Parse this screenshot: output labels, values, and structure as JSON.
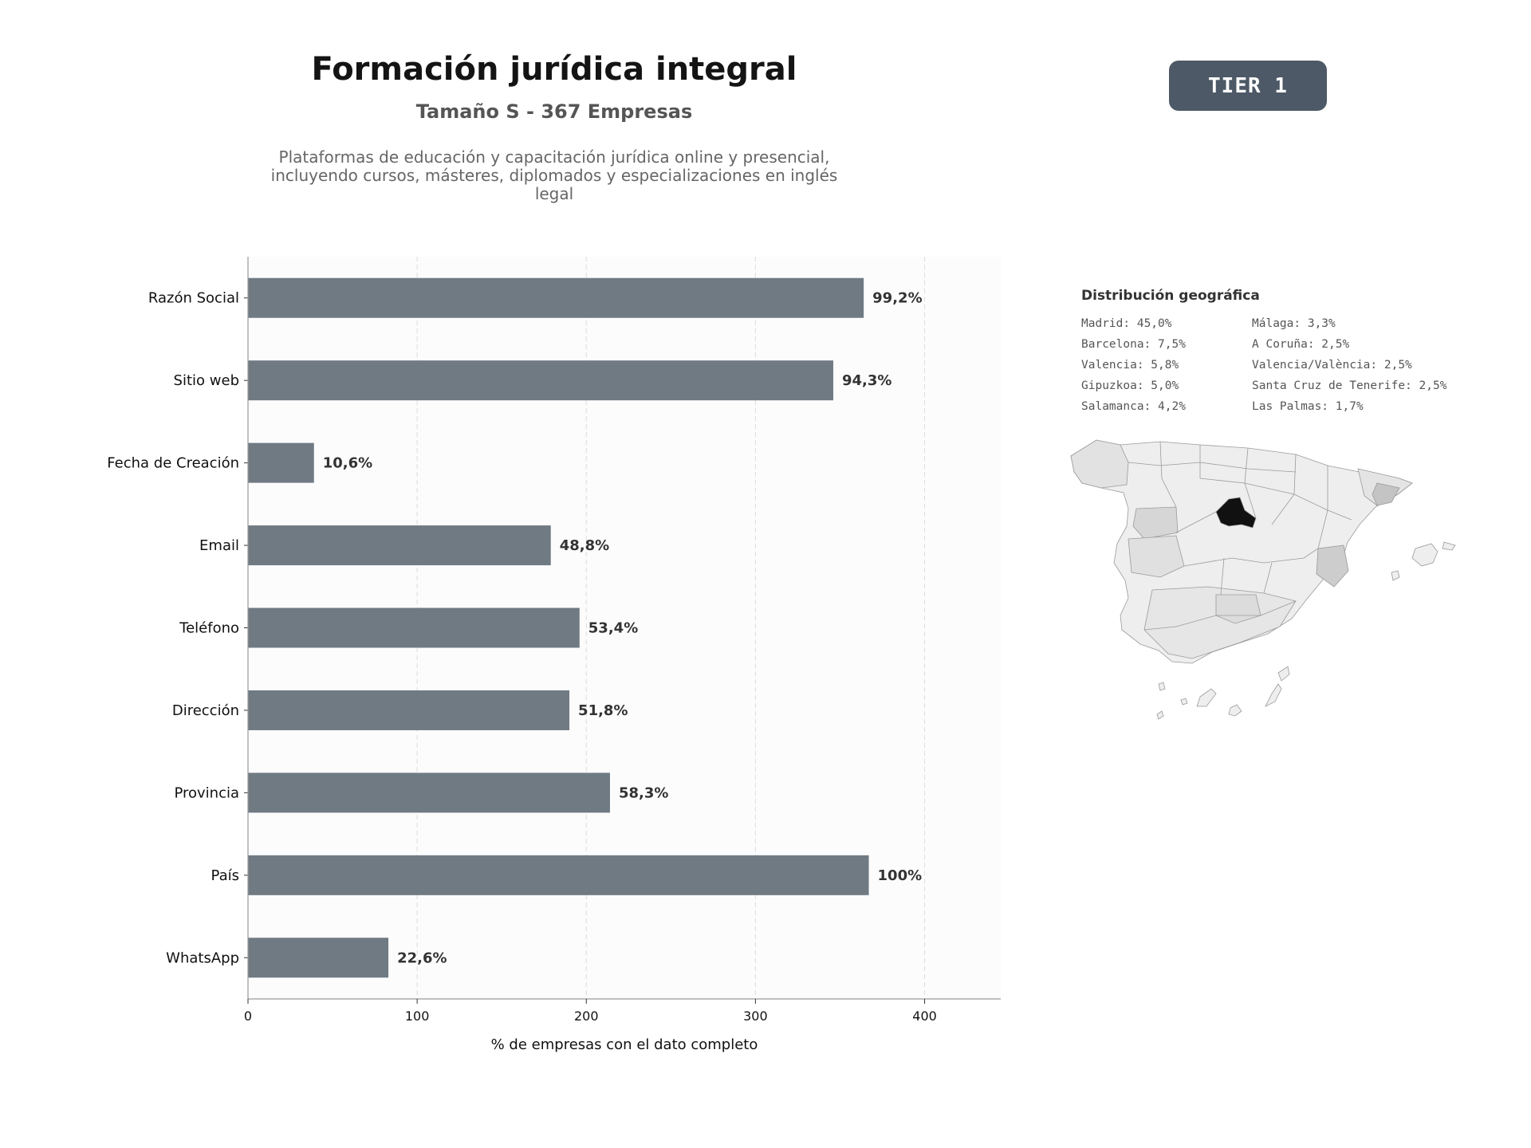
{
  "header": {
    "title": "Formación jurídica integral",
    "subtitle": "Tamaño S - 367 Empresas",
    "description_lines": [
      "Plataformas de educación y capacitación jurídica online y presencial,",
      "incluyendo cursos, másteres, diplomados y especializaciones en inglés",
      "legal"
    ],
    "tier_badge": "TIER 1"
  },
  "colors": {
    "bar": "#6f7a83",
    "badge": "#4d5966",
    "map_highlight": "#111111",
    "map_base": "#eeeeee"
  },
  "chart_data": {
    "type": "bar",
    "orientation": "horizontal",
    "categories": [
      "Razón Social",
      "Sitio web",
      "Fecha de Creación",
      "Email",
      "Teléfono",
      "Dirección",
      "Provincia",
      "País",
      "WhatsApp"
    ],
    "values": [
      364,
      346,
      39,
      179,
      196,
      190,
      214,
      367,
      83
    ],
    "data_labels": [
      "99,2%",
      "94,3%",
      "10,6%",
      "48,8%",
      "53,4%",
      "51,8%",
      "58,3%",
      "100%",
      "22,6%"
    ],
    "xlabel": "% de empresas con el dato completo",
    "ylabel": "",
    "xlim": [
      0,
      445
    ],
    "xticks": [
      0,
      100,
      200,
      300,
      400
    ],
    "grid": "vertical dashed"
  },
  "geo": {
    "title": "Distribución geográfica",
    "col1": [
      "Madrid: 45,0%",
      "Barcelona: 7,5%",
      "Valencia: 5,8%",
      "Gipuzkoa: 5,0%",
      "Salamanca: 4,2%"
    ],
    "col2": [
      "Málaga: 3,3%",
      "A Coruña: 2,5%",
      "Valencia/València: 2,5%",
      "Santa Cruz de Tenerife: 2,5%",
      "Las Palmas: 1,7%"
    ]
  }
}
